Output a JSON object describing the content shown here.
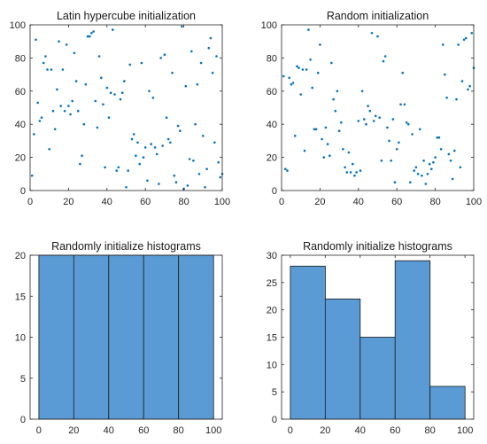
{
  "colors": {
    "marker": "#0072bd",
    "bar_fill": "#5b9bd5",
    "bar_edge": "#1a1a1a",
    "axis": "#262626"
  },
  "chart_data": [
    {
      "type": "scatter",
      "title": "Latin hypercube initialization",
      "xlim": [
        0,
        100
      ],
      "ylim": [
        0,
        100
      ],
      "xticks": [
        0,
        20,
        40,
        60,
        80,
        100
      ],
      "yticks": [
        0,
        20,
        40,
        60,
        80,
        100
      ],
      "grid": false,
      "points": [
        [
          1,
          9
        ],
        [
          2,
          34
        ],
        [
          3,
          91
        ],
        [
          4,
          53
        ],
        [
          5,
          42
        ],
        [
          6,
          44
        ],
        [
          7,
          77
        ],
        [
          8,
          81
        ],
        [
          9,
          73
        ],
        [
          10,
          25
        ],
        [
          11,
          73
        ],
        [
          12,
          48
        ],
        [
          13,
          37
        ],
        [
          14,
          61
        ],
        [
          15,
          90
        ],
        [
          16,
          51
        ],
        [
          17,
          73
        ],
        [
          18,
          48
        ],
        [
          19,
          88
        ],
        [
          20,
          51
        ],
        [
          21,
          46
        ],
        [
          22,
          54
        ],
        [
          23,
          83
        ],
        [
          24,
          66
        ],
        [
          25,
          48
        ],
        [
          26,
          16
        ],
        [
          27,
          21
        ],
        [
          28,
          40
        ],
        [
          29,
          64
        ],
        [
          30,
          93
        ],
        [
          31,
          93
        ],
        [
          32,
          95
        ],
        [
          33,
          96
        ],
        [
          34,
          54
        ],
        [
          35,
          38
        ],
        [
          36,
          81
        ],
        [
          37,
          68
        ],
        [
          38,
          52
        ],
        [
          39,
          14
        ],
        [
          40,
          62
        ],
        [
          41,
          44
        ],
        [
          42,
          59
        ],
        [
          43,
          97
        ],
        [
          44,
          58
        ],
        [
          45,
          12
        ],
        [
          46,
          14
        ],
        [
          47,
          55
        ],
        [
          48,
          59
        ],
        [
          49,
          66
        ],
        [
          50,
          2
        ],
        [
          51,
          12
        ],
        [
          52,
          76
        ],
        [
          53,
          31
        ],
        [
          54,
          34
        ],
        [
          55,
          21
        ],
        [
          56,
          29
        ],
        [
          57,
          16
        ],
        [
          58,
          77
        ],
        [
          59,
          20
        ],
        [
          60,
          26
        ],
        [
          61,
          6
        ],
        [
          62,
          60
        ],
        [
          63,
          28
        ],
        [
          64,
          56
        ],
        [
          65,
          26
        ],
        [
          66,
          22
        ],
        [
          67,
          4
        ],
        [
          68,
          80
        ],
        [
          69,
          27
        ],
        [
          70,
          82
        ],
        [
          71,
          44
        ],
        [
          72,
          31
        ],
        [
          73,
          29
        ],
        [
          74,
          71
        ],
        [
          75,
          9
        ],
        [
          76,
          5
        ],
        [
          77,
          39
        ],
        [
          78,
          36
        ],
        [
          79,
          99
        ],
        [
          80,
          1
        ],
        [
          81,
          63
        ],
        [
          82,
          3
        ],
        [
          83,
          19
        ],
        [
          84,
          84
        ],
        [
          85,
          18
        ],
        [
          86,
          40
        ],
        [
          87,
          64
        ],
        [
          88,
          10
        ],
        [
          89,
          77
        ],
        [
          90,
          33
        ],
        [
          91,
          2
        ],
        [
          92,
          13
        ],
        [
          93,
          86
        ],
        [
          94,
          92
        ],
        [
          95,
          71
        ],
        [
          96,
          29
        ],
        [
          97,
          81
        ],
        [
          98,
          17
        ],
        [
          99,
          8
        ],
        [
          100,
          10
        ]
      ]
    },
    {
      "type": "scatter",
      "title": "Random initialization",
      "xlim": [
        0,
        100
      ],
      "ylim": [
        0,
        100
      ],
      "xticks": [
        0,
        20,
        40,
        60,
        80,
        100
      ],
      "yticks": [
        0,
        20,
        40,
        60,
        80,
        100
      ],
      "grid": false,
      "points": [
        [
          1,
          69
        ],
        [
          2,
          13
        ],
        [
          3,
          12
        ],
        [
          4,
          68
        ],
        [
          5,
          64
        ],
        [
          6,
          65
        ],
        [
          7,
          33
        ],
        [
          8,
          75
        ],
        [
          9,
          74
        ],
        [
          10,
          58
        ],
        [
          11,
          73
        ],
        [
          12,
          24
        ],
        [
          13,
          73
        ],
        [
          14,
          97
        ],
        [
          15,
          79
        ],
        [
          16,
          62
        ],
        [
          17,
          37
        ],
        [
          18,
          37
        ],
        [
          19,
          71
        ],
        [
          20,
          88
        ],
        [
          21,
          31
        ],
        [
          22,
          20
        ],
        [
          23,
          38
        ],
        [
          24,
          28
        ],
        [
          25,
          21
        ],
        [
          26,
          77
        ],
        [
          27,
          55
        ],
        [
          28,
          48
        ],
        [
          29,
          60
        ],
        [
          30,
          36
        ],
        [
          31,
          41
        ],
        [
          32,
          25
        ],
        [
          33,
          14
        ],
        [
          34,
          11
        ],
        [
          35,
          23
        ],
        [
          36,
          11
        ],
        [
          37,
          16
        ],
        [
          38,
          9
        ],
        [
          39,
          11
        ],
        [
          40,
          42
        ],
        [
          41,
          12
        ],
        [
          42,
          60
        ],
        [
          43,
          43
        ],
        [
          44,
          40
        ],
        [
          45,
          51
        ],
        [
          46,
          48
        ],
        [
          47,
          95
        ],
        [
          48,
          42
        ],
        [
          49,
          45
        ],
        [
          50,
          93
        ],
        [
          51,
          44
        ],
        [
          52,
          18
        ],
        [
          53,
          78
        ],
        [
          54,
          81
        ],
        [
          55,
          38
        ],
        [
          56,
          30
        ],
        [
          57,
          18
        ],
        [
          58,
          43
        ],
        [
          59,
          5
        ],
        [
          60,
          25
        ],
        [
          61,
          29
        ],
        [
          62,
          52
        ],
        [
          63,
          71
        ],
        [
          64,
          52
        ],
        [
          65,
          41
        ],
        [
          66,
          40
        ],
        [
          67,
          5
        ],
        [
          68,
          34
        ],
        [
          69,
          12
        ],
        [
          70,
          14
        ],
        [
          71,
          10
        ],
        [
          72,
          37
        ],
        [
          73,
          9
        ],
        [
          74,
          18
        ],
        [
          75,
          4
        ],
        [
          76,
          10
        ],
        [
          77,
          16
        ],
        [
          78,
          13
        ],
        [
          79,
          17
        ],
        [
          80,
          20
        ],
        [
          81,
          32
        ],
        [
          82,
          32
        ],
        [
          83,
          25
        ],
        [
          84,
          88
        ],
        [
          85,
          70
        ],
        [
          86,
          56
        ],
        [
          87,
          22
        ],
        [
          88,
          18
        ],
        [
          89,
          7
        ],
        [
          90,
          24
        ],
        [
          91,
          55
        ],
        [
          92,
          88
        ],
        [
          93,
          14
        ],
        [
          94,
          66
        ],
        [
          95,
          91
        ],
        [
          96,
          92
        ],
        [
          97,
          61
        ],
        [
          98,
          63
        ],
        [
          99,
          95
        ],
        [
          100,
          74
        ]
      ]
    },
    {
      "type": "bar",
      "title": "Randomly initialize histograms",
      "bin_edges": [
        0,
        20,
        40,
        60,
        80,
        100
      ],
      "values": [
        20,
        20,
        20,
        20,
        20
      ],
      "xlim": [
        -5,
        105
      ],
      "ylim": [
        0,
        20
      ],
      "xticks": [
        0,
        20,
        40,
        60,
        80,
        100
      ],
      "yticks": [
        0,
        5,
        10,
        15,
        20
      ]
    },
    {
      "type": "bar",
      "title": "Randomly initialize histograms",
      "bin_edges": [
        0,
        20,
        40,
        60,
        80,
        100
      ],
      "values": [
        28,
        22,
        15,
        29,
        6
      ],
      "xlim": [
        -5,
        105
      ],
      "ylim": [
        0,
        30
      ],
      "xticks": [
        0,
        20,
        40,
        60,
        80,
        100
      ],
      "yticks": [
        0,
        5,
        10,
        15,
        20,
        25,
        30
      ]
    }
  ]
}
